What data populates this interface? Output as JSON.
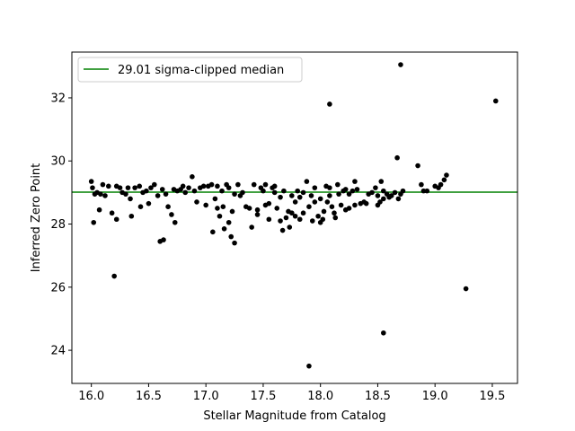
{
  "chart_data": {
    "type": "scatter",
    "xlabel": "Stellar Magnitude from Catalog",
    "ylabel": "Inferred Zero Point",
    "xlim": [
      15.83,
      19.72
    ],
    "ylim": [
      22.95,
      33.45
    ],
    "xticks": [
      16.0,
      16.5,
      17.0,
      17.5,
      18.0,
      18.5,
      19.0,
      19.5
    ],
    "xtick_labels": [
      "16.0",
      "16.5",
      "17.0",
      "17.5",
      "18.0",
      "18.5",
      "19.0",
      "19.5"
    ],
    "yticks": [
      24,
      26,
      28,
      30,
      32
    ],
    "ytick_labels": [
      "24",
      "26",
      "28",
      "30",
      "32"
    ],
    "grid": false,
    "median_line": {
      "y": 29.01,
      "color": "#008000"
    },
    "legend": {
      "position": "upper-left",
      "label": "29.01 sigma-clipped median"
    },
    "marker_color": "#000000",
    "points": [
      [
        16.0,
        29.35
      ],
      [
        16.01,
        29.15
      ],
      [
        16.02,
        28.05
      ],
      [
        16.03,
        28.95
      ],
      [
        16.05,
        29.0
      ],
      [
        16.07,
        28.45
      ],
      [
        16.08,
        28.95
      ],
      [
        16.1,
        29.25
      ],
      [
        16.12,
        28.9
      ],
      [
        16.15,
        29.2
      ],
      [
        16.18,
        28.35
      ],
      [
        16.2,
        26.35
      ],
      [
        16.22,
        28.15
      ],
      [
        16.22,
        29.2
      ],
      [
        16.25,
        29.15
      ],
      [
        16.27,
        29.0
      ],
      [
        16.3,
        28.95
      ],
      [
        16.32,
        29.15
      ],
      [
        16.34,
        28.8
      ],
      [
        16.35,
        28.25
      ],
      [
        16.38,
        29.15
      ],
      [
        16.42,
        29.2
      ],
      [
        16.43,
        28.55
      ],
      [
        16.45,
        29.0
      ],
      [
        16.48,
        29.05
      ],
      [
        16.5,
        28.65
      ],
      [
        16.52,
        29.15
      ],
      [
        16.55,
        29.25
      ],
      [
        16.58,
        28.9
      ],
      [
        16.6,
        27.45
      ],
      [
        16.62,
        29.1
      ],
      [
        16.63,
        27.5
      ],
      [
        16.65,
        28.95
      ],
      [
        16.67,
        28.55
      ],
      [
        16.7,
        28.3
      ],
      [
        16.72,
        29.1
      ],
      [
        16.73,
        28.05
      ],
      [
        16.75,
        29.05
      ],
      [
        16.78,
        29.1
      ],
      [
        16.8,
        29.2
      ],
      [
        16.82,
        29.0
      ],
      [
        16.85,
        29.15
      ],
      [
        16.88,
        29.5
      ],
      [
        16.9,
        29.05
      ],
      [
        16.92,
        28.7
      ],
      [
        16.95,
        29.15
      ],
      [
        16.98,
        29.2
      ],
      [
        17.0,
        28.6
      ],
      [
        17.02,
        29.2
      ],
      [
        17.05,
        29.25
      ],
      [
        17.06,
        27.75
      ],
      [
        17.08,
        28.8
      ],
      [
        17.1,
        29.2
      ],
      [
        17.1,
        28.5
      ],
      [
        17.12,
        28.25
      ],
      [
        17.14,
        29.05
      ],
      [
        17.15,
        28.55
      ],
      [
        17.16,
        27.85
      ],
      [
        17.18,
        29.25
      ],
      [
        17.2,
        29.15
      ],
      [
        17.2,
        28.05
      ],
      [
        17.22,
        27.6
      ],
      [
        17.23,
        28.4
      ],
      [
        17.25,
        28.95
      ],
      [
        17.25,
        27.4
      ],
      [
        17.28,
        29.25
      ],
      [
        17.3,
        28.9
      ],
      [
        17.32,
        29.0
      ],
      [
        17.35,
        28.55
      ],
      [
        17.38,
        28.5
      ],
      [
        17.4,
        27.9
      ],
      [
        17.42,
        29.25
      ],
      [
        17.45,
        28.45
      ],
      [
        17.45,
        28.3
      ],
      [
        17.48,
        29.15
      ],
      [
        17.5,
        29.05
      ],
      [
        17.52,
        28.6
      ],
      [
        17.52,
        29.25
      ],
      [
        17.55,
        28.15
      ],
      [
        17.55,
        28.65
      ],
      [
        17.58,
        29.15
      ],
      [
        17.6,
        29.2
      ],
      [
        17.6,
        29.0
      ],
      [
        17.62,
        28.5
      ],
      [
        17.65,
        28.1
      ],
      [
        17.65,
        28.85
      ],
      [
        17.67,
        27.8
      ],
      [
        17.68,
        29.05
      ],
      [
        17.7,
        28.2
      ],
      [
        17.72,
        28.4
      ],
      [
        17.73,
        27.9
      ],
      [
        17.75,
        28.35
      ],
      [
        17.75,
        28.9
      ],
      [
        17.78,
        28.25
      ],
      [
        17.78,
        28.7
      ],
      [
        17.8,
        29.05
      ],
      [
        17.82,
        28.15
      ],
      [
        17.82,
        28.85
      ],
      [
        17.85,
        28.35
      ],
      [
        17.85,
        29.0
      ],
      [
        17.88,
        29.35
      ],
      [
        17.9,
        28.55
      ],
      [
        17.92,
        28.9
      ],
      [
        17.93,
        28.1
      ],
      [
        17.95,
        28.7
      ],
      [
        17.95,
        29.15
      ],
      [
        17.98,
        28.25
      ],
      [
        18.0,
        28.05
      ],
      [
        18.0,
        28.8
      ],
      [
        18.02,
        28.15
      ],
      [
        18.03,
        28.4
      ],
      [
        18.05,
        29.2
      ],
      [
        18.06,
        28.7
      ],
      [
        18.08,
        29.15
      ],
      [
        18.08,
        28.9
      ],
      [
        18.1,
        28.55
      ],
      [
        18.12,
        28.35
      ],
      [
        18.13,
        28.2
      ],
      [
        18.15,
        29.25
      ],
      [
        18.16,
        28.95
      ],
      [
        18.18,
        28.6
      ],
      [
        18.2,
        29.05
      ],
      [
        18.22,
        28.45
      ],
      [
        18.22,
        29.1
      ],
      [
        18.25,
        28.95
      ],
      [
        18.25,
        28.5
      ],
      [
        18.28,
        29.05
      ],
      [
        18.3,
        28.6
      ],
      [
        18.3,
        29.35
      ],
      [
        18.32,
        29.1
      ],
      [
        18.35,
        28.65
      ],
      [
        18.38,
        28.7
      ],
      [
        18.4,
        28.65
      ],
      [
        18.42,
        28.95
      ],
      [
        18.45,
        29.0
      ],
      [
        18.48,
        29.15
      ],
      [
        18.5,
        28.9
      ],
      [
        18.5,
        28.6
      ],
      [
        18.52,
        28.7
      ],
      [
        18.53,
        29.35
      ],
      [
        18.55,
        28.8
      ],
      [
        18.55,
        29.05
      ],
      [
        18.58,
        28.95
      ],
      [
        18.6,
        28.85
      ],
      [
        18.62,
        28.9
      ],
      [
        18.65,
        29.0
      ],
      [
        18.68,
        28.8
      ],
      [
        18.7,
        28.95
      ],
      [
        18.72,
        29.05
      ],
      [
        18.85,
        29.85
      ],
      [
        18.88,
        29.25
      ],
      [
        18.9,
        29.05
      ],
      [
        18.93,
        29.05
      ],
      [
        19.0,
        29.2
      ],
      [
        19.03,
        29.15
      ],
      [
        19.05,
        29.25
      ],
      [
        19.08,
        29.4
      ],
      [
        19.1,
        29.55
      ],
      [
        17.9,
        23.5
      ],
      [
        18.08,
        31.8
      ],
      [
        18.55,
        24.55
      ],
      [
        18.67,
        30.1
      ],
      [
        18.7,
        33.05
      ],
      [
        19.27,
        25.95
      ],
      [
        19.53,
        31.9
      ]
    ]
  }
}
